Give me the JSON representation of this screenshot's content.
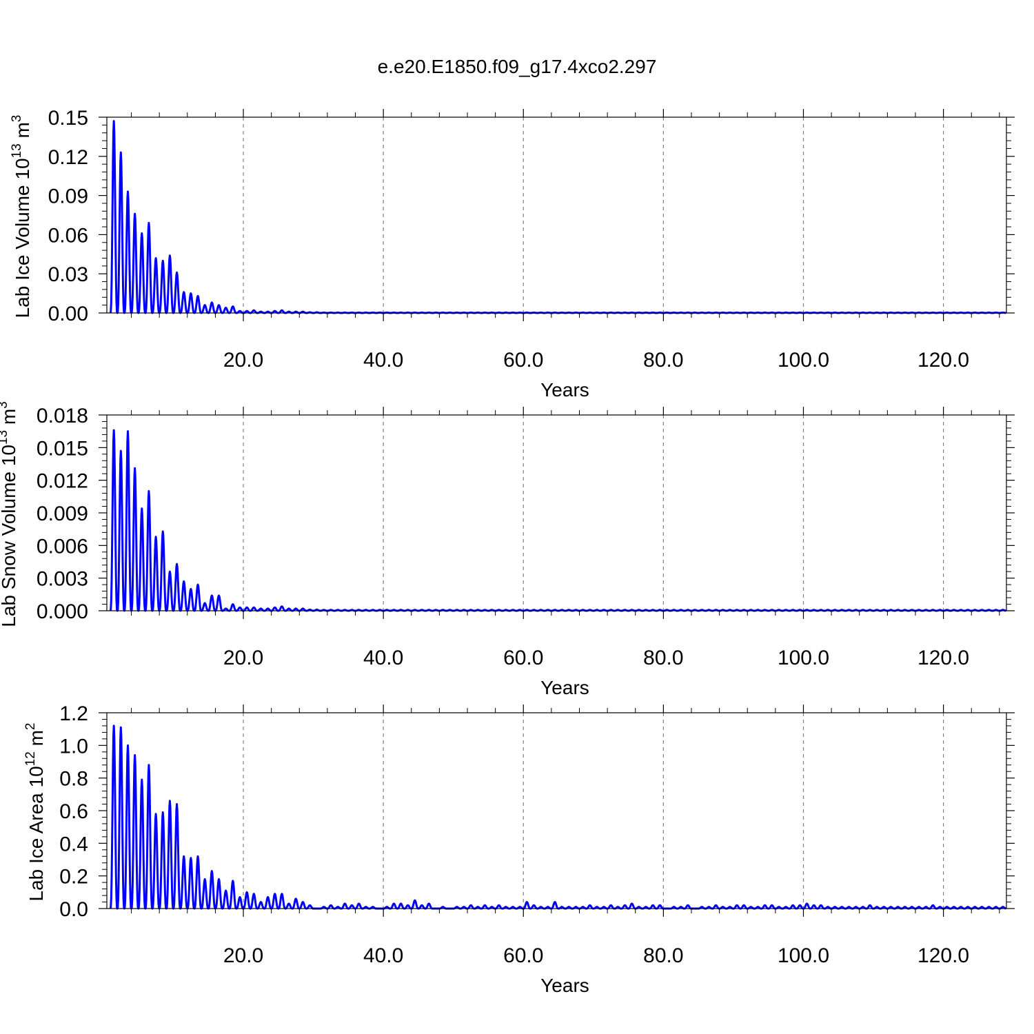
{
  "figure_title": "e.e20.E1850.f09_g17.4xco2.297",
  "colors": {
    "series": "#0000ff",
    "grid": "#808080",
    "axis": "#000000"
  },
  "chart_data": [
    {
      "type": "line",
      "title": "",
      "xlabel": "Years",
      "ylabel_main": "Lab Ice Volume 10",
      "ylabel_exp": "13",
      "ylabel_unit": " m",
      "ylabel_unit_exp": "3",
      "xlim": [
        0.5,
        129
      ],
      "ylim": [
        0,
        0.15
      ],
      "xticks": [
        20,
        40,
        60,
        80,
        100,
        120
      ],
      "xtick_labels": [
        "20.0",
        "40.0",
        "60.0",
        "80.0",
        "100.0",
        "120.0"
      ],
      "yticks": [
        0,
        0.03,
        0.06,
        0.09,
        0.12,
        0.15
      ],
      "ytick_labels": [
        "0.00",
        "0.03",
        "0.06",
        "0.09",
        "0.12",
        "0.15"
      ],
      "grid": "vertical dashed at x ticks",
      "series": [
        {
          "x_start": 1,
          "min_value": 0.0,
          "annual_peaks": [
            0.147,
            0.123,
            0.093,
            0.076,
            0.061,
            0.069,
            0.042,
            0.04,
            0.044,
            0.031,
            0.016,
            0.015,
            0.013,
            0.006,
            0.008,
            0.006,
            0.004,
            0.005,
            0.0015,
            0.0015,
            0.002,
            0.001,
            0.001,
            0.0015,
            0.002,
            0.001,
            0.001,
            0.001,
            0.0005,
            0.0005
          ],
          "tail_peak": 0.0003,
          "x_end": 129
        }
      ]
    },
    {
      "type": "line",
      "title": "",
      "xlabel": "Years",
      "ylabel_main": "Lab Snow Volume 10",
      "ylabel_exp": "13",
      "ylabel_unit": " m",
      "ylabel_unit_exp": "3",
      "xlim": [
        0.5,
        129
      ],
      "ylim": [
        0,
        0.018
      ],
      "xticks": [
        20,
        40,
        60,
        80,
        100,
        120
      ],
      "xtick_labels": [
        "20.0",
        "40.0",
        "60.0",
        "80.0",
        "100.0",
        "120.0"
      ],
      "yticks": [
        0,
        0.003,
        0.006,
        0.009,
        0.012,
        0.015,
        0.018
      ],
      "ytick_labels": [
        "0.000",
        "0.003",
        "0.006",
        "0.009",
        "0.012",
        "0.015",
        "0.018"
      ],
      "grid": "vertical dashed at x ticks",
      "series": [
        {
          "x_start": 1,
          "min_value": 0.0,
          "annual_peaks": [
            0.0166,
            0.0147,
            0.0165,
            0.0131,
            0.0094,
            0.011,
            0.0068,
            0.0073,
            0.0036,
            0.0043,
            0.0027,
            0.002,
            0.0024,
            0.0007,
            0.0014,
            0.0014,
            0.0002,
            0.0006,
            0.0003,
            0.0003,
            0.0003,
            0.0002,
            0.0002,
            0.0003,
            0.0004,
            0.0002,
            0.0002,
            0.0002,
            0.0001,
            0.0001
          ],
          "tail_peak": 8e-05,
          "x_end": 129
        }
      ]
    },
    {
      "type": "line",
      "title": "",
      "xlabel": "Years",
      "ylabel_main": "Lab Ice Area 10",
      "ylabel_exp": "12",
      "ylabel_unit": " m",
      "ylabel_unit_exp": "2",
      "xlim": [
        0.5,
        129
      ],
      "ylim": [
        0,
        1.2
      ],
      "xticks": [
        20,
        40,
        60,
        80,
        100,
        120
      ],
      "xtick_labels": [
        "20.0",
        "40.0",
        "60.0",
        "80.0",
        "100.0",
        "120.0"
      ],
      "yticks": [
        0,
        0.2,
        0.4,
        0.6,
        0.8,
        1.0,
        1.2
      ],
      "ytick_labels": [
        "0.0",
        "0.2",
        "0.4",
        "0.6",
        "0.8",
        "1.0",
        "1.2"
      ],
      "grid": "vertical dashed at x ticks",
      "series": [
        {
          "x_start": 1,
          "min_value": 0.0,
          "annual_peaks": [
            1.12,
            1.11,
            1.0,
            0.94,
            0.79,
            0.88,
            0.58,
            0.59,
            0.66,
            0.64,
            0.32,
            0.31,
            0.32,
            0.18,
            0.23,
            0.18,
            0.11,
            0.17,
            0.07,
            0.1,
            0.09,
            0.04,
            0.07,
            0.09,
            0.09,
            0.03,
            0.06,
            0.04,
            0.02,
            0.0
          ],
          "tail_peaks": [
            0.01,
            0.02,
            0.01,
            0.03,
            0.02,
            0.03,
            0.01,
            0.01,
            0.0,
            0.01,
            0.03,
            0.03,
            0.02,
            0.05,
            0.02,
            0.03,
            0.0,
            0.01,
            0.0,
            0.01,
            0.01,
            0.02,
            0.01,
            0.02,
            0.01,
            0.02,
            0.01,
            0.01,
            0.01,
            0.04,
            0.02,
            0.01,
            0.01,
            0.04,
            0.01,
            0.01,
            0.01,
            0.01,
            0.02,
            0.01,
            0.01,
            0.02,
            0.01,
            0.02,
            0.03,
            0.01,
            0.01,
            0.02,
            0.02,
            0.0,
            0.01,
            0.01,
            0.02,
            0.0,
            0.01,
            0.01,
            0.02,
            0.01,
            0.01,
            0.02,
            0.02,
            0.01,
            0.01,
            0.02,
            0.02,
            0.01,
            0.01,
            0.02,
            0.02,
            0.03,
            0.02,
            0.02,
            0.01,
            0.01,
            0.01,
            0.01,
            0.01,
            0.01,
            0.02,
            0.01,
            0.01,
            0.01,
            0.01,
            0.01,
            0.01,
            0.01,
            0.01,
            0.02,
            0.01,
            0.01,
            0.01,
            0.01,
            0.01,
            0.01,
            0.01,
            0.01,
            0.01,
            0.01,
            0.01
          ],
          "x_end": 129
        }
      ]
    }
  ]
}
